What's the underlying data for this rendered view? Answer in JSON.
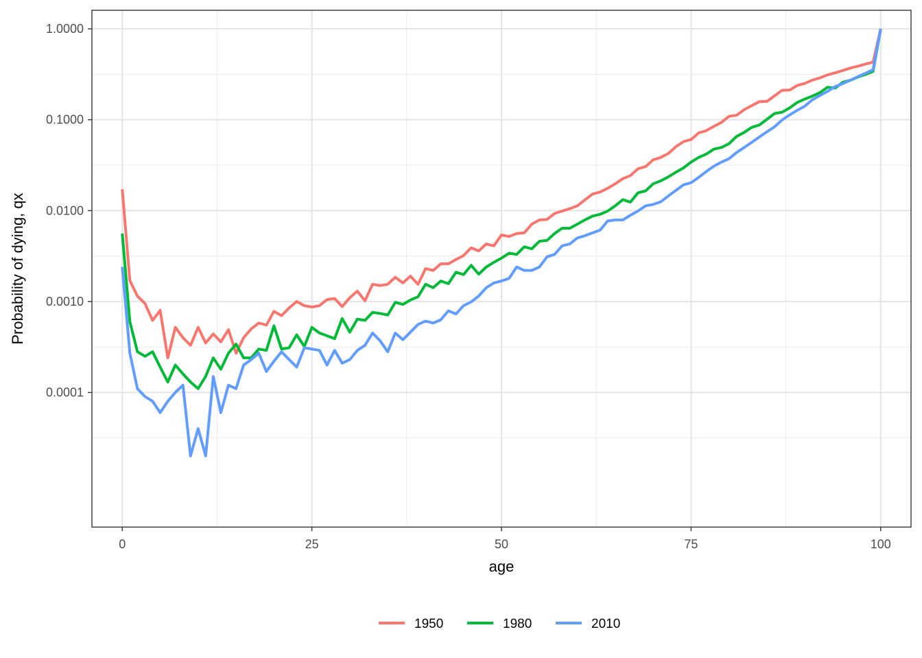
{
  "chart_data": {
    "type": "line",
    "title": "",
    "xlabel": "age",
    "ylabel": "Probability of dying, qx",
    "xlim": [
      -4,
      104
    ],
    "ylim": [
      3.3e-06,
      1.6
    ],
    "yscale": "log10",
    "grid": true,
    "legend_position": "bottom",
    "x_ticks": [
      0,
      25,
      50,
      75,
      100
    ],
    "x_tick_labels": [
      "0",
      "25",
      "50",
      "75",
      "100"
    ],
    "y_ticks": [
      0.0001,
      0.001,
      0.01,
      0.1,
      1
    ],
    "y_tick_labels": [
      "0.0001",
      "0.0010",
      "0.0100",
      "0.1000",
      "1.0000"
    ],
    "x": [
      0,
      1,
      2,
      3,
      4,
      5,
      6,
      7,
      8,
      9,
      10,
      11,
      12,
      13,
      14,
      15,
      16,
      17,
      18,
      19,
      20,
      21,
      22,
      23,
      24,
      25,
      26,
      27,
      28,
      29,
      30,
      31,
      32,
      33,
      34,
      35,
      36,
      37,
      38,
      39,
      40,
      41,
      42,
      43,
      44,
      45,
      46,
      47,
      48,
      49,
      50,
      51,
      52,
      53,
      54,
      55,
      56,
      57,
      58,
      59,
      60,
      61,
      62,
      63,
      64,
      65,
      66,
      67,
      68,
      69,
      70,
      71,
      72,
      73,
      74,
      75,
      76,
      77,
      78,
      79,
      80,
      81,
      82,
      83,
      84,
      85,
      86,
      87,
      88,
      89,
      90,
      91,
      92,
      93,
      94,
      95,
      96,
      97,
      98,
      99,
      100
    ],
    "series": [
      {
        "name": "1950",
        "color": "#F8766D",
        "values": [
          0.0172,
          0.0017,
          0.00115,
          0.00095,
          0.00062,
          0.0008,
          0.00024,
          0.00052,
          0.0004,
          0.00033,
          0.00052,
          0.00035,
          0.00044,
          0.00036,
          0.00049,
          0.00027,
          0.0004,
          0.0005,
          0.00058,
          0.00055,
          0.00078,
          0.0007,
          0.00085,
          0.001,
          0.0009,
          0.00087,
          0.0009,
          0.00105,
          0.00108,
          0.00088,
          0.0011,
          0.0013,
          0.00102,
          0.00155,
          0.0015,
          0.00155,
          0.00185,
          0.0016,
          0.0019,
          0.00155,
          0.0023,
          0.0022,
          0.0026,
          0.0026,
          0.0029,
          0.0032,
          0.0039,
          0.0036,
          0.0043,
          0.0041,
          0.0054,
          0.0052,
          0.0056,
          0.0057,
          0.0071,
          0.0079,
          0.008,
          0.0093,
          0.0099,
          0.0105,
          0.0113,
          0.0131,
          0.0152,
          0.016,
          0.0176,
          0.0197,
          0.0225,
          0.0243,
          0.0289,
          0.0305,
          0.0362,
          0.0385,
          0.0425,
          0.0505,
          0.0575,
          0.0605,
          0.0715,
          0.0758,
          0.0845,
          0.0935,
          0.109,
          0.112,
          0.129,
          0.143,
          0.158,
          0.159,
          0.183,
          0.211,
          0.212,
          0.238,
          0.251,
          0.273,
          0.289,
          0.312,
          0.328,
          0.348,
          0.37,
          0.388,
          0.41,
          0.43,
          1.0
        ]
      },
      {
        "name": "1980",
        "color": "#00BA38",
        "values": [
          0.0056,
          0.0006,
          0.00028,
          0.00025,
          0.00028,
          0.00019,
          0.00013,
          0.0002,
          0.00016,
          0.00013,
          0.00011,
          0.00015,
          0.00024,
          0.00018,
          0.00027,
          0.00034,
          0.00024,
          0.00024,
          0.0003,
          0.00029,
          0.00054,
          0.0003,
          0.00031,
          0.00043,
          0.00032,
          0.00052,
          0.00045,
          0.00042,
          0.00039,
          0.00065,
          0.00046,
          0.00064,
          0.00062,
          0.00076,
          0.00074,
          0.00071,
          0.00098,
          0.00093,
          0.00104,
          0.00113,
          0.00155,
          0.00142,
          0.00168,
          0.00157,
          0.0021,
          0.00198,
          0.0025,
          0.002,
          0.0024,
          0.0027,
          0.003,
          0.0034,
          0.0033,
          0.004,
          0.0038,
          0.0046,
          0.0047,
          0.0056,
          0.0064,
          0.0064,
          0.0071,
          0.0079,
          0.0087,
          0.0091,
          0.0099,
          0.0113,
          0.0132,
          0.0124,
          0.0157,
          0.0165,
          0.0197,
          0.0213,
          0.0235,
          0.0265,
          0.0295,
          0.0342,
          0.0385,
          0.0419,
          0.0475,
          0.0495,
          0.0545,
          0.0655,
          0.0725,
          0.0825,
          0.0875,
          0.101,
          0.117,
          0.121,
          0.135,
          0.155,
          0.169,
          0.182,
          0.199,
          0.228,
          0.223,
          0.258,
          0.272,
          0.295,
          0.315,
          0.34,
          1.0
        ]
      },
      {
        "name": "2010",
        "color": "#619CFF",
        "values": [
          0.0024,
          0.00027,
          0.00011,
          9e-05,
          8e-05,
          6e-05,
          8e-05,
          0.0001,
          0.00012,
          2e-05,
          4e-05,
          2e-05,
          0.00015,
          6e-05,
          0.00012,
          0.00011,
          0.0002,
          0.00023,
          0.00027,
          0.00017,
          0.00022,
          0.00028,
          0.00023,
          0.00019,
          0.00031,
          0.0003,
          0.00029,
          0.0002,
          0.00029,
          0.00021,
          0.00023,
          0.00029,
          0.00033,
          0.00045,
          0.00037,
          0.00028,
          0.00045,
          0.00038,
          0.00046,
          0.00056,
          0.00061,
          0.00058,
          0.00063,
          0.00079,
          0.00073,
          0.0009,
          0.00099,
          0.00115,
          0.00142,
          0.0016,
          0.00168,
          0.0018,
          0.0024,
          0.0022,
          0.0022,
          0.0024,
          0.0031,
          0.0033,
          0.0041,
          0.0043,
          0.005,
          0.0053,
          0.0057,
          0.0061,
          0.0077,
          0.0079,
          0.0079,
          0.0089,
          0.0099,
          0.0113,
          0.0117,
          0.0125,
          0.0145,
          0.0167,
          0.0192,
          0.0203,
          0.0232,
          0.0269,
          0.0308,
          0.0342,
          0.0372,
          0.0435,
          0.0495,
          0.0565,
          0.0645,
          0.0735,
          0.0835,
          0.0995,
          0.113,
          0.127,
          0.141,
          0.166,
          0.185,
          0.205,
          0.232,
          0.249,
          0.272,
          0.298,
          0.325,
          0.355,
          1.0
        ]
      }
    ]
  }
}
